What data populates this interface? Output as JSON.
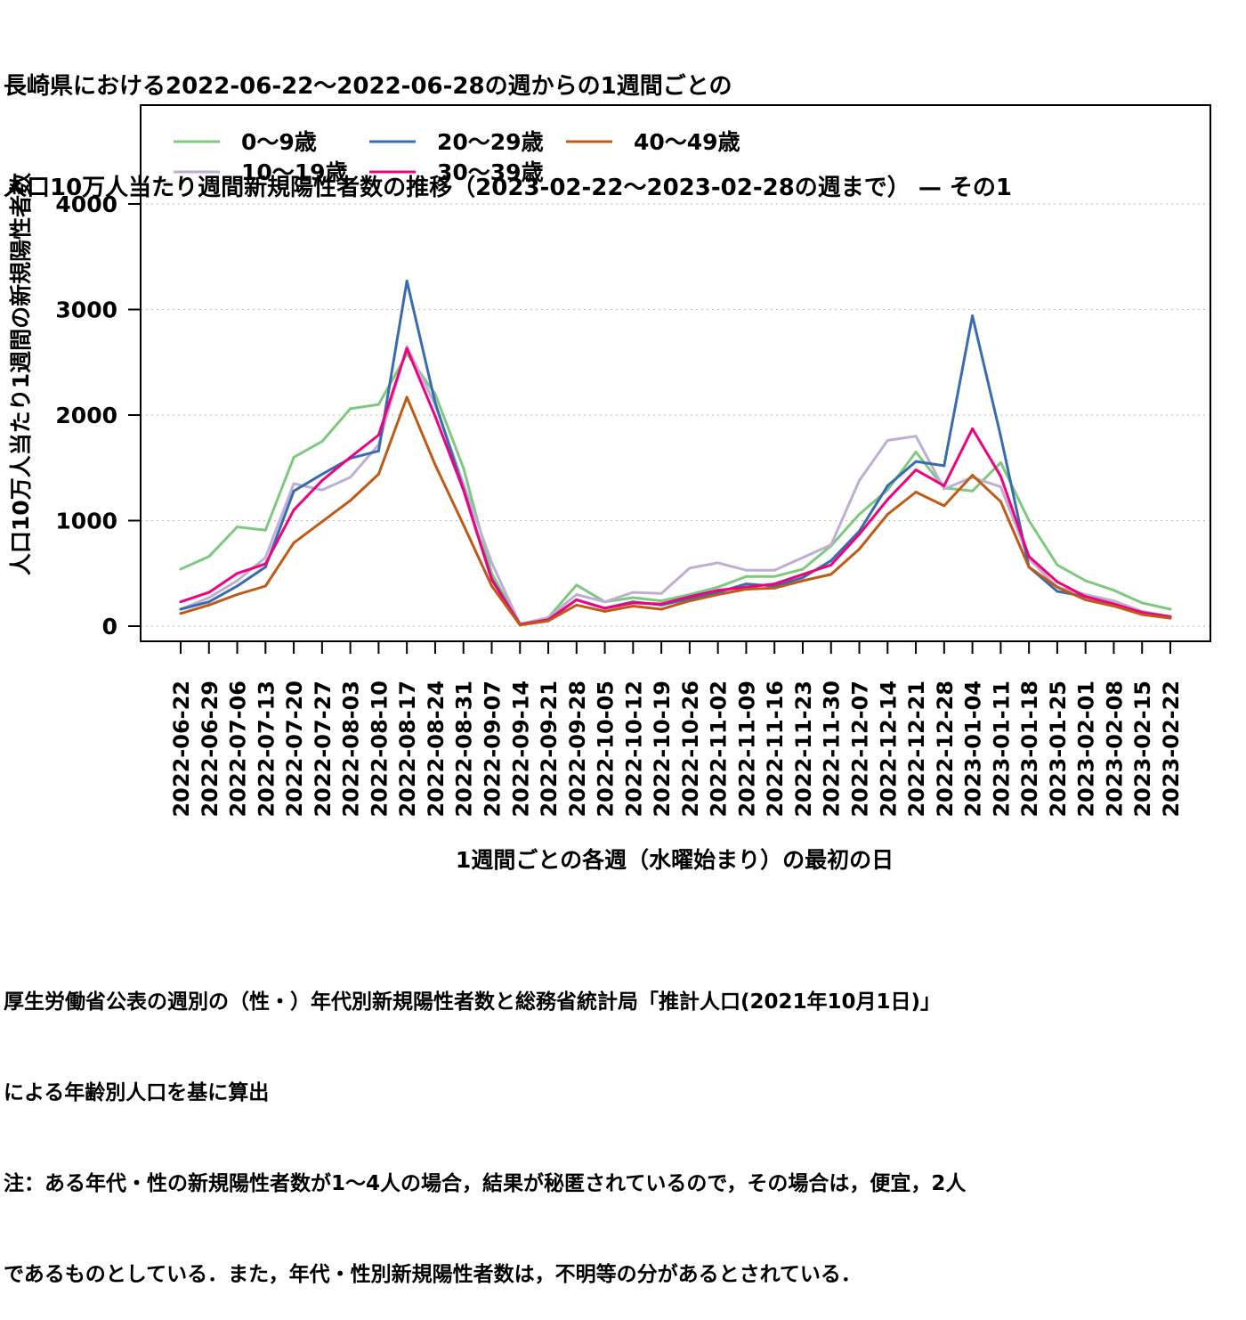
{
  "title_lines": [
    "長崎県における2022-06-22〜2022-06-28の週からの1週間ごとの",
    "人口10万人当たり週間新規陽性者数の推移（2023-02-22〜2023-02-28の週まで） — その1"
  ],
  "notes": [
    "厚生労働省公表の週別の（性・）年代別新規陽性者数と総務省統計局「推計人口(2021年10月1日)」",
    "による年齢別人口を基に算出",
    "注：ある年代・性の新規陽性者数が1〜4人の場合，結果が秘匿されているので，その場合は，便宜，2人",
    "であるものとしている．また，年代・性別新規陽性者数は，不明等の分があるとされている．"
  ],
  "chart_data": {
    "type": "line",
    "xlabel": "1週間ごとの各週（水曜始まり）の最初の日",
    "ylabel": "人口10万人当たり1週間の新規陽性者数",
    "ylim": [
      0,
      4800
    ],
    "yticks": [
      0,
      1000,
      2000,
      3000,
      4000
    ],
    "grid": true,
    "legend_position": "top-left",
    "categories": [
      "2022-06-22",
      "2022-06-29",
      "2022-07-06",
      "2022-07-13",
      "2022-07-20",
      "2022-07-27",
      "2022-08-03",
      "2022-08-10",
      "2022-08-17",
      "2022-08-24",
      "2022-08-31",
      "2022-09-07",
      "2022-09-14",
      "2022-09-21",
      "2022-09-28",
      "2022-10-05",
      "2022-10-12",
      "2022-10-19",
      "2022-10-26",
      "2022-11-02",
      "2022-11-09",
      "2022-11-16",
      "2022-11-23",
      "2022-11-30",
      "2022-12-07",
      "2022-12-14",
      "2022-12-21",
      "2022-12-28",
      "2023-01-04",
      "2023-01-11",
      "2023-01-18",
      "2023-01-25",
      "2023-02-01",
      "2023-02-08",
      "2023-02-15",
      "2023-02-22"
    ],
    "series": [
      {
        "name": "0〜9歳",
        "color": "#7fc97f",
        "values": [
          540,
          660,
          940,
          910,
          1600,
          1750,
          2060,
          2100,
          2580,
          2200,
          1500,
          500,
          20,
          80,
          390,
          230,
          270,
          240,
          300,
          370,
          470,
          470,
          540,
          760,
          1060,
          1290,
          1650,
          1310,
          1280,
          1550,
          1000,
          580,
          430,
          340,
          220,
          160
        ]
      },
      {
        "name": "10〜19歳",
        "color": "#beaed4",
        "values": [
          160,
          270,
          430,
          650,
          1350,
          1290,
          1410,
          1720,
          2650,
          2100,
          1350,
          600,
          20,
          80,
          300,
          230,
          320,
          310,
          550,
          600,
          530,
          530,
          650,
          770,
          1380,
          1760,
          1800,
          1300,
          1410,
          1320,
          640,
          370,
          300,
          240,
          140,
          90
        ]
      },
      {
        "name": "20〜29歳",
        "color": "#386cb0",
        "values": [
          160,
          230,
          380,
          560,
          1280,
          1440,
          1590,
          1660,
          3270,
          2120,
          1300,
          450,
          15,
          60,
          250,
          170,
          230,
          200,
          260,
          320,
          400,
          380,
          460,
          620,
          900,
          1330,
          1560,
          1520,
          2940,
          1800,
          560,
          330,
          280,
          210,
          120,
          90
        ]
      },
      {
        "name": "30〜39歳",
        "color": "#f0027f",
        "values": [
          230,
          320,
          500,
          590,
          1100,
          1380,
          1600,
          1810,
          2630,
          1990,
          1290,
          440,
          15,
          60,
          250,
          170,
          220,
          210,
          280,
          340,
          370,
          400,
          490,
          580,
          870,
          1200,
          1480,
          1330,
          1870,
          1420,
          660,
          420,
          280,
          210,
          130,
          90
        ]
      },
      {
        "name": "40〜49歳",
        "color": "#bf5b17",
        "values": [
          120,
          200,
          300,
          380,
          790,
          990,
          1190,
          1440,
          2170,
          1530,
          960,
          380,
          10,
          50,
          200,
          140,
          190,
          160,
          240,
          300,
          350,
          360,
          430,
          490,
          730,
          1060,
          1270,
          1140,
          1430,
          1180,
          560,
          370,
          250,
          190,
          110,
          75
        ]
      }
    ]
  }
}
